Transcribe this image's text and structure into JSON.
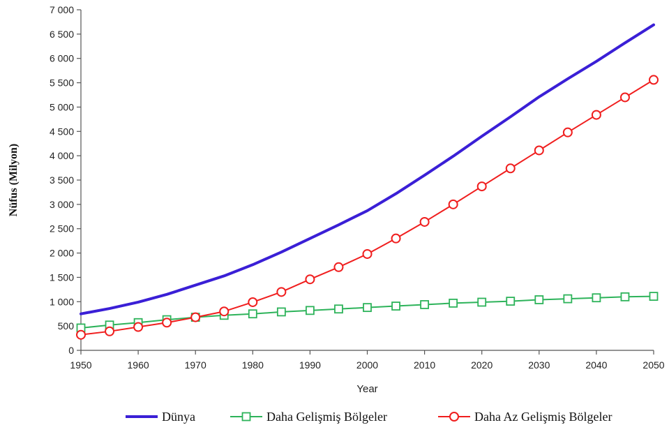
{
  "chart_data": {
    "type": "line",
    "title": "",
    "xlabel": "Year",
    "ylabel": "Nüfus (Milyon)",
    "xlim": [
      1950,
      2050
    ],
    "ylim": [
      0,
      7000
    ],
    "x_ticks": [
      "1950",
      "1960",
      "1970",
      "1980",
      "1990",
      "2000",
      "2010",
      "2020",
      "2030",
      "2040",
      "2050"
    ],
    "y_ticks": [
      "0",
      "500",
      "1 000",
      "1 500",
      "2 000",
      "2 500",
      "3 000",
      "3 500",
      "4 000",
      "4 500",
      "5 000",
      "5 500",
      "6 000",
      "6 500",
      "7 000"
    ],
    "grid": false,
    "legend_position": "bottom",
    "x": [
      1950,
      1955,
      1960,
      1965,
      1970,
      1975,
      1980,
      1985,
      1990,
      1995,
      2000,
      2005,
      2010,
      2015,
      2020,
      2025,
      2030,
      2035,
      2040,
      2045,
      2050
    ],
    "series": [
      {
        "name": "Dünya",
        "color": "#3a1fd6",
        "marker": "none",
        "values": [
          750,
          860,
          990,
          1150,
          1340,
          1530,
          1760,
          2020,
          2300,
          2580,
          2870,
          3220,
          3600,
          3990,
          4400,
          4800,
          5210,
          5580,
          5940,
          6320,
          6690
        ]
      },
      {
        "name": "Daha Gelişmiş Bölgeler",
        "color": "#2db35a",
        "marker": "square",
        "values": [
          460,
          520,
          570,
          630,
          680,
          720,
          750,
          790,
          820,
          850,
          880,
          910,
          940,
          970,
          990,
          1010,
          1040,
          1060,
          1080,
          1100,
          1110
        ]
      },
      {
        "name": "Daha Az Gelişmiş Bölgeler",
        "color": "#f01e1e",
        "marker": "circle",
        "values": [
          320,
          390,
          480,
          570,
          680,
          800,
          990,
          1200,
          1460,
          1710,
          1980,
          2300,
          2640,
          3000,
          3370,
          3740,
          4110,
          4480,
          4840,
          5200,
          5560
        ]
      }
    ]
  }
}
